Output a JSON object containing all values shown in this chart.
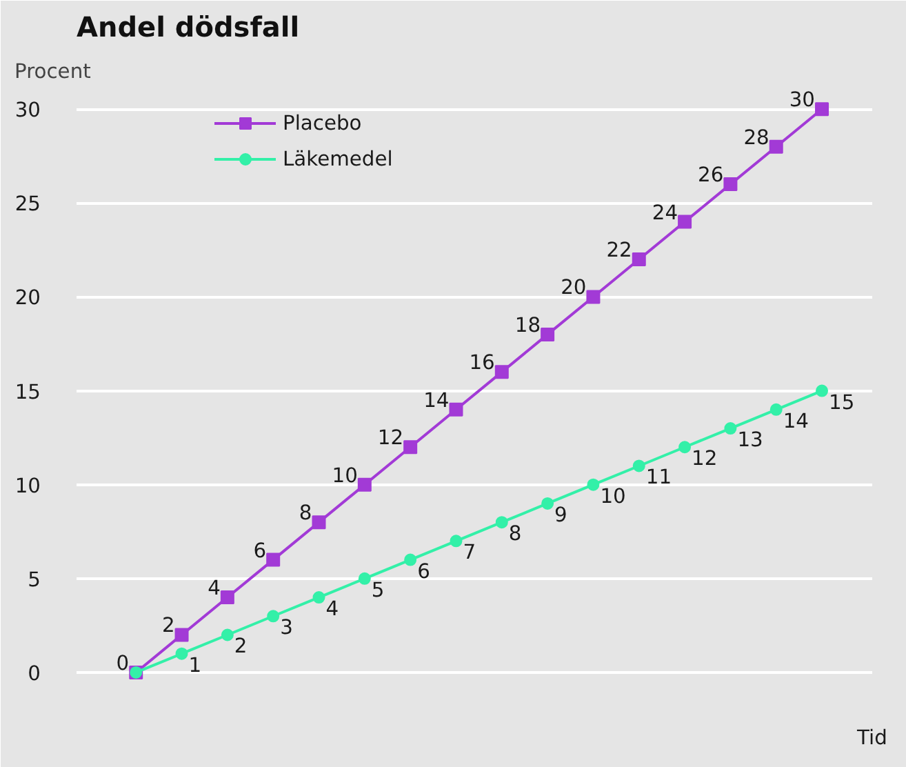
{
  "chart_data": {
    "type": "line",
    "title": "Andel dödsfall",
    "ylabel": "Procent",
    "xlabel": "Tid",
    "categories": [
      null,
      null,
      null,
      null,
      null,
      null,
      null,
      null,
      null,
      null,
      null,
      null,
      null,
      null,
      null,
      null
    ],
    "series": [
      {
        "name": "Placebo",
        "color": "#a23ad6",
        "marker": "square",
        "values": [
          0,
          2,
          4,
          6,
          8,
          10,
          12,
          14,
          16,
          18,
          20,
          22,
          24,
          26,
          28,
          30
        ],
        "value_labels": [
          "0",
          "2",
          "4",
          "6",
          "8",
          "10",
          "12",
          "14",
          "16",
          "18",
          "20",
          "22",
          "24",
          "26",
          "28",
          "30"
        ]
      },
      {
        "name": "Läkemedel",
        "color": "#33f0a8",
        "marker": "circle",
        "values": [
          0,
          1,
          2,
          3,
          4,
          5,
          6,
          7,
          8,
          9,
          10,
          11,
          12,
          13,
          14,
          15
        ],
        "value_labels": [
          null,
          "1",
          "2",
          "3",
          "4",
          "5",
          "6",
          "7",
          "8",
          "9",
          "10",
          "11",
          "12",
          "13",
          "14",
          "15"
        ]
      }
    ],
    "ylim": [
      -2.5,
      31
    ],
    "yticks": [
      0,
      5,
      10,
      15,
      20,
      25,
      30
    ],
    "grid": "y",
    "legend": "top left",
    "line_style": "solid"
  }
}
